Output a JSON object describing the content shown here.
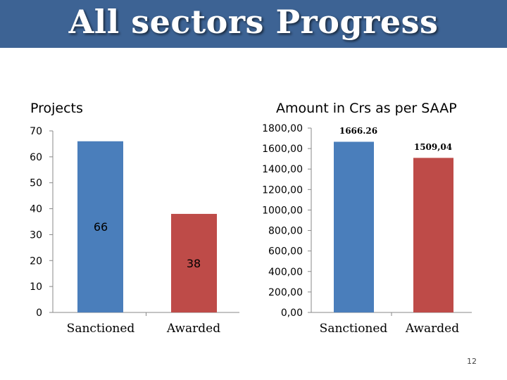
{
  "slide": {
    "title": "All sectors Progress",
    "page_number": "12",
    "header_color": "#3d6394"
  },
  "chart_data": [
    {
      "type": "bar",
      "title": "Projects",
      "categories": [
        "Sanctioned",
        "Awarded"
      ],
      "values": [
        66,
        38
      ],
      "data_labels": [
        "66",
        "38"
      ],
      "colors": [
        "#4a7ebb",
        "#be4b48"
      ],
      "ylim": [
        0,
        70
      ],
      "yticks": [
        "0",
        "10",
        "20",
        "30",
        "40",
        "50",
        "60",
        "70"
      ],
      "xlabel": "",
      "ylabel": ""
    },
    {
      "type": "bar",
      "title": "Amount in Crs as per SAAP",
      "categories": [
        "Sanctioned",
        "Awarded"
      ],
      "values": [
        1666.26,
        1509.04
      ],
      "data_labels": [
        "1666.26",
        "1509,04"
      ],
      "colors": [
        "#4a7ebb",
        "#be4b48"
      ],
      "ylim": [
        0,
        1800
      ],
      "yticks": [
        "0,00",
        "200,00",
        "400,00",
        "600,00",
        "800,00",
        "1000,00",
        "1200,00",
        "1400,00",
        "1600,00",
        "1800,00"
      ],
      "xlabel": "",
      "ylabel": ""
    }
  ]
}
